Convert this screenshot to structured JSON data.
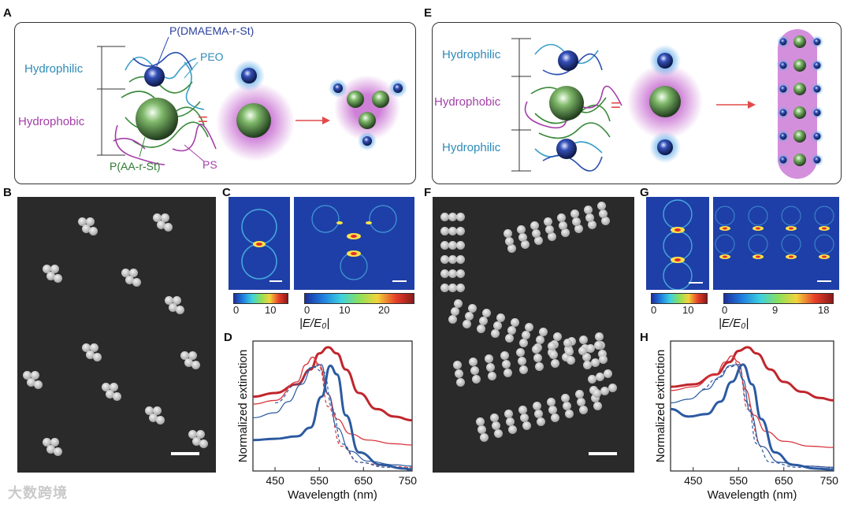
{
  "panels": {
    "A": "A",
    "B": "B",
    "C": "C",
    "D": "D",
    "E": "E",
    "F": "F",
    "G": "G",
    "H": "H"
  },
  "schematic_left": {
    "hydrophilic": "Hydrophilic",
    "hydrophobic": "Hydrophobic",
    "dmaema": "P(DMAEMA-r-St)",
    "peo": "PEO",
    "aa": "P(AA-r-St)",
    "ps": "PS",
    "equals": "="
  },
  "schematic_right": {
    "hydrophilic_top": "Hydrophilic",
    "hydrophobic": "Hydrophobic",
    "hydrophilic_bottom": "Hydrophilic",
    "equals": "="
  },
  "field_C": {
    "ticks_small": [
      "0",
      "10"
    ],
    "ticks_large": [
      "0",
      "10",
      "20"
    ],
    "label": "|E/E₀|"
  },
  "field_G": {
    "ticks_small": [
      "0",
      "10"
    ],
    "ticks_large": [
      "0",
      "9",
      "18"
    ],
    "label": "|E/E₀|"
  },
  "chart_data": [
    {
      "panel": "D",
      "type": "line",
      "xlabel": "Wavelength (nm)",
      "ylabel": "Normalized extinction",
      "xlim": [
        400,
        760
      ],
      "ylim": [
        0,
        1.05
      ],
      "xticks": [
        450,
        550,
        650,
        750
      ],
      "series": [
        {
          "name": "red thick (experiment)",
          "color": "#c0262d",
          "width": 3,
          "dash": "",
          "x": [
            400,
            450,
            500,
            530,
            550,
            570,
            590,
            610,
            640,
            680,
            720,
            760
          ],
          "y": [
            0.6,
            0.63,
            0.7,
            0.82,
            0.95,
            1.0,
            0.95,
            0.82,
            0.63,
            0.5,
            0.44,
            0.41
          ]
        },
        {
          "name": "red thin (simulation)",
          "color": "#d9373d",
          "width": 1.3,
          "dash": "",
          "x": [
            400,
            450,
            500,
            520,
            535,
            550,
            570,
            590,
            620,
            660,
            720,
            760
          ],
          "y": [
            0.54,
            0.57,
            0.72,
            0.86,
            0.92,
            0.86,
            0.62,
            0.42,
            0.3,
            0.25,
            0.22,
            0.21
          ]
        },
        {
          "name": "red dashed",
          "color": "#d9373d",
          "width": 1.2,
          "dash": "4,3",
          "x": [
            500,
            520,
            535,
            550,
            570,
            600,
            640,
            700,
            760
          ],
          "y": [
            0.72,
            0.86,
            0.92,
            0.84,
            0.52,
            0.2,
            0.07,
            0.04,
            0.03
          ]
        },
        {
          "name": "blue thick (experiment)",
          "color": "#2c5aa0",
          "width": 3,
          "dash": "",
          "x": [
            400,
            450,
            500,
            530,
            555,
            575,
            590,
            610,
            640,
            690,
            740,
            760
          ],
          "y": [
            0.25,
            0.26,
            0.28,
            0.35,
            0.6,
            0.85,
            0.78,
            0.45,
            0.15,
            0.05,
            0.02,
            0.01
          ]
        },
        {
          "name": "blue thin (simulation)",
          "color": "#2c5aa0",
          "width": 1.2,
          "dash": "",
          "x": [
            400,
            450,
            480,
            510,
            535,
            555,
            570,
            590,
            620,
            660,
            720,
            760
          ],
          "y": [
            0.43,
            0.47,
            0.56,
            0.7,
            0.84,
            0.86,
            0.62,
            0.35,
            0.16,
            0.08,
            0.05,
            0.04
          ]
        },
        {
          "name": "blue dashed",
          "color": "#2c5aa0",
          "width": 1.2,
          "dash": "4,3",
          "x": [
            450,
            500,
            535,
            560,
            580,
            600,
            640,
            700,
            760
          ],
          "y": [
            0.55,
            0.7,
            0.84,
            0.8,
            0.5,
            0.22,
            0.07,
            0.03,
            0.02
          ]
        }
      ]
    },
    {
      "panel": "H",
      "type": "line",
      "xlabel": "Wavelength (nm)",
      "ylabel": "Normalized extinction",
      "xlim": [
        400,
        760
      ],
      "ylim": [
        0,
        1.05
      ],
      "xticks": [
        450,
        550,
        650,
        750
      ],
      "series": [
        {
          "name": "red thick (experiment)",
          "color": "#c0262d",
          "width": 3,
          "dash": "",
          "x": [
            400,
            450,
            500,
            530,
            550,
            570,
            590,
            620,
            650,
            690,
            730,
            760
          ],
          "y": [
            0.68,
            0.7,
            0.78,
            0.88,
            0.97,
            1.0,
            0.95,
            0.82,
            0.72,
            0.64,
            0.59,
            0.57
          ]
        },
        {
          "name": "red thin (simulation)",
          "color": "#d9373d",
          "width": 1.3,
          "dash": "",
          "x": [
            400,
            450,
            500,
            520,
            535,
            550,
            565,
            585,
            610,
            650,
            710,
            760
          ],
          "y": [
            0.65,
            0.68,
            0.78,
            0.88,
            0.93,
            0.88,
            0.66,
            0.45,
            0.32,
            0.24,
            0.2,
            0.19
          ]
        },
        {
          "name": "red dashed",
          "color": "#d9373d",
          "width": 1.2,
          "dash": "4,3",
          "x": [
            500,
            520,
            535,
            550,
            570,
            600,
            640,
            700,
            760
          ],
          "y": [
            0.78,
            0.88,
            0.93,
            0.85,
            0.5,
            0.2,
            0.07,
            0.04,
            0.03
          ]
        },
        {
          "name": "blue thick (experiment)",
          "color": "#2c5aa0",
          "width": 3,
          "dash": "",
          "x": [
            400,
            440,
            480,
            510,
            535,
            560,
            580,
            600,
            630,
            670,
            720,
            760
          ],
          "y": [
            0.5,
            0.44,
            0.46,
            0.56,
            0.72,
            0.86,
            0.7,
            0.42,
            0.15,
            0.05,
            0.02,
            0.01
          ]
        },
        {
          "name": "blue thin (simulation)",
          "color": "#2c5aa0",
          "width": 1.2,
          "dash": "",
          "x": [
            400,
            440,
            480,
            510,
            530,
            545,
            560,
            575,
            600,
            640,
            700,
            760
          ],
          "y": [
            0.55,
            0.58,
            0.66,
            0.76,
            0.85,
            0.86,
            0.74,
            0.48,
            0.2,
            0.07,
            0.04,
            0.03
          ]
        },
        {
          "name": "blue dashed",
          "color": "#2c5aa0",
          "width": 1.2,
          "dash": "4,3",
          "x": [
            470,
            500,
            530,
            550,
            570,
            590,
            620,
            680,
            760
          ],
          "y": [
            0.66,
            0.74,
            0.84,
            0.86,
            0.55,
            0.22,
            0.07,
            0.03,
            0.02
          ]
        }
      ]
    }
  ],
  "watermark": "大数跨境"
}
